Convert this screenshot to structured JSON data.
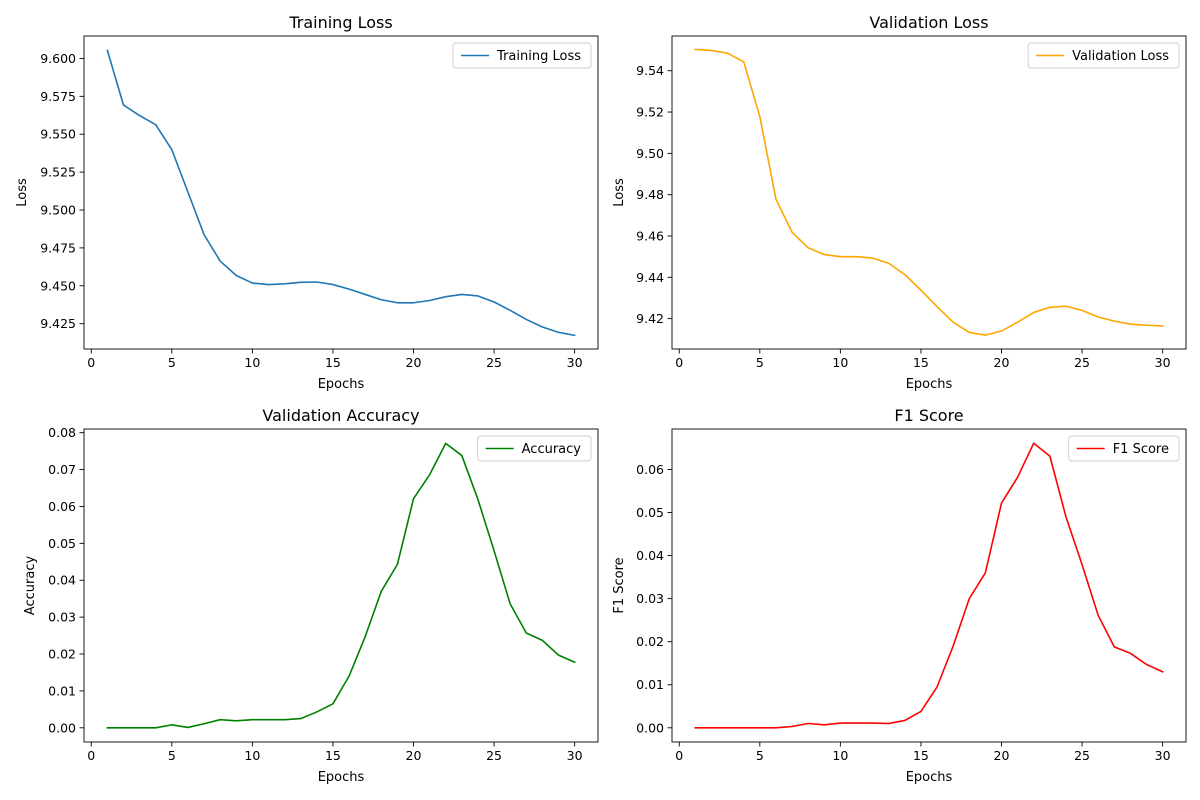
{
  "chart_data": [
    {
      "type": "line",
      "title": "Training Loss",
      "xlabel": "Epochs",
      "ylabel": "Loss",
      "xlim": [
        -0.45,
        31.45
      ],
      "ylim": [
        9.4083,
        9.6148
      ],
      "xticks": [
        0,
        5,
        10,
        15,
        20,
        25,
        30
      ],
      "yticks": [
        9.425,
        9.45,
        9.475,
        9.5,
        9.525,
        9.55,
        9.575,
        9.6
      ],
      "ytick_labels": [
        "9.425",
        "9.450",
        "9.475",
        "9.500",
        "9.525",
        "9.550",
        "9.575",
        "9.600"
      ],
      "legend_position": "upper-right",
      "series": [
        {
          "name": "Training Loss",
          "color": "#1f77b4",
          "x": [
            1,
            2,
            3,
            4,
            5,
            6,
            7,
            8,
            9,
            10,
            11,
            12,
            13,
            14,
            15,
            16,
            17,
            18,
            19,
            20,
            21,
            22,
            23,
            24,
            25,
            26,
            27,
            28,
            29,
            30
          ],
          "values": [
            9.6053,
            9.5693,
            9.5623,
            9.5563,
            9.5398,
            9.5118,
            9.4838,
            9.4663,
            9.4568,
            9.4518,
            9.4508,
            9.4513,
            9.4523,
            9.4525,
            9.4508,
            9.4478,
            9.4443,
            9.4408,
            9.4388,
            9.4388,
            9.4403,
            9.4428,
            9.4443,
            9.4433,
            9.4393,
            9.4338,
            9.4278,
            9.4228,
            9.4193,
            9.4173
          ]
        }
      ]
    },
    {
      "type": "line",
      "title": "Validation Loss",
      "xlabel": "Epochs",
      "ylabel": "Loss",
      "xlim": [
        -0.45,
        31.45
      ],
      "ylim": [
        9.4053,
        9.5568
      ],
      "xticks": [
        0,
        5,
        10,
        15,
        20,
        25,
        30
      ],
      "yticks": [
        9.42,
        9.44,
        9.46,
        9.48,
        9.5,
        9.52,
        9.54
      ],
      "ytick_labels": [
        "9.42",
        "9.44",
        "9.46",
        "9.48",
        "9.50",
        "9.52",
        "9.54"
      ],
      "legend_position": "upper-right",
      "series": [
        {
          "name": "Validation Loss",
          "color": "#ffa500",
          "x": [
            1,
            2,
            3,
            4,
            5,
            6,
            7,
            8,
            9,
            10,
            11,
            12,
            13,
            14,
            15,
            16,
            17,
            18,
            19,
            20,
            21,
            22,
            23,
            24,
            25,
            26,
            27,
            28,
            29,
            30
          ],
          "values": [
            9.5503,
            9.5498,
            9.5485,
            9.5443,
            9.5178,
            9.4778,
            9.4618,
            9.4543,
            9.451,
            9.45,
            9.45,
            9.4493,
            9.4468,
            9.4413,
            9.4338,
            9.4258,
            9.4183,
            9.4133,
            9.412,
            9.414,
            9.4183,
            9.423,
            9.4255,
            9.426,
            9.424,
            9.4208,
            9.4188,
            9.4173,
            9.4168,
            9.4165
          ]
        }
      ]
    },
    {
      "type": "line",
      "title": "Validation Accuracy",
      "xlabel": "Epochs",
      "ylabel": "Accuracy",
      "xlim": [
        -0.45,
        31.45
      ],
      "ylim": [
        -0.00385,
        0.081
      ],
      "xticks": [
        0,
        5,
        10,
        15,
        20,
        25,
        30
      ],
      "yticks": [
        0.0,
        0.01,
        0.02,
        0.03,
        0.04,
        0.05,
        0.06,
        0.07,
        0.08
      ],
      "ytick_labels": [
        "0.00",
        "0.01",
        "0.02",
        "0.03",
        "0.04",
        "0.05",
        "0.06",
        "0.07",
        "0.08"
      ],
      "legend_position": "upper-right",
      "series": [
        {
          "name": "Accuracy",
          "color": "#008000",
          "x": [
            1,
            2,
            3,
            4,
            5,
            6,
            7,
            8,
            9,
            10,
            11,
            12,
            13,
            14,
            15,
            16,
            17,
            18,
            19,
            20,
            21,
            22,
            23,
            24,
            25,
            26,
            27,
            28,
            29,
            30
          ],
          "values": [
            0.0,
            0.0,
            0.0,
            0.0,
            0.0008,
            0.0001,
            0.0011,
            0.0022,
            0.0019,
            0.0022,
            0.0022,
            0.0022,
            0.0025,
            0.0043,
            0.0065,
            0.014,
            0.0247,
            0.037,
            0.0443,
            0.0621,
            0.0686,
            0.0771,
            0.0738,
            0.0619,
            0.048,
            0.0336,
            0.0257,
            0.0237,
            0.0197,
            0.0178
          ]
        }
      ]
    },
    {
      "type": "line",
      "title": "F1 Score",
      "xlabel": "Epochs",
      "ylabel": "F1 Score",
      "xlim": [
        -0.45,
        31.45
      ],
      "ylim": [
        -0.0033,
        0.0694
      ],
      "xticks": [
        0,
        5,
        10,
        15,
        20,
        25,
        30
      ],
      "yticks": [
        0.0,
        0.01,
        0.02,
        0.03,
        0.04,
        0.05,
        0.06
      ],
      "ytick_labels": [
        "0.00",
        "0.01",
        "0.02",
        "0.03",
        "0.04",
        "0.05",
        "0.06"
      ],
      "legend_position": "upper-right",
      "series": [
        {
          "name": "F1 Score",
          "color": "#ff0000",
          "x": [
            1,
            2,
            3,
            4,
            5,
            6,
            7,
            8,
            9,
            10,
            11,
            12,
            13,
            14,
            15,
            16,
            17,
            18,
            19,
            20,
            21,
            22,
            23,
            24,
            25,
            26,
            27,
            28,
            29,
            30
          ],
          "values": [
            0.0,
            0.0,
            0.0,
            0.0,
            0.0,
            0.0,
            0.0003,
            0.001,
            0.0007,
            0.0011,
            0.0011,
            0.0011,
            0.001,
            0.0017,
            0.0038,
            0.0095,
            0.019,
            0.03,
            0.036,
            0.0522,
            0.0582,
            0.0661,
            0.0631,
            0.049,
            0.0379,
            0.0261,
            0.0188,
            0.0173,
            0.0147,
            0.013
          ]
        }
      ]
    }
  ]
}
